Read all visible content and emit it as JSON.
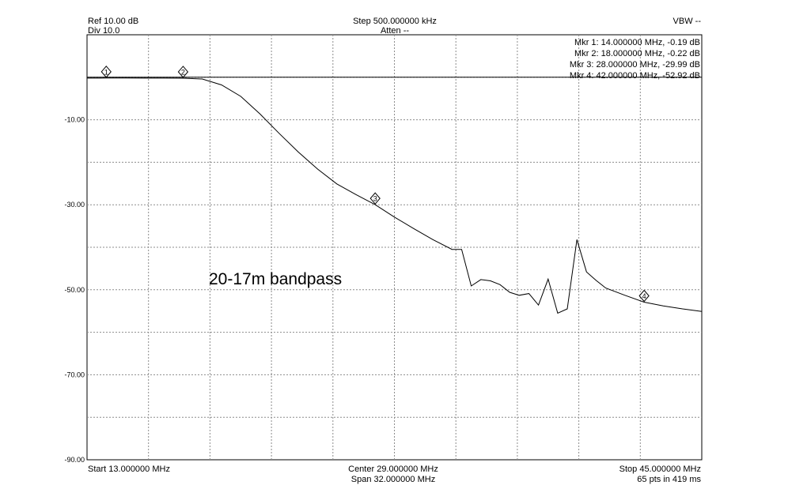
{
  "header": {
    "ref": "Ref 10.00 dB",
    "div": "Div 10.0",
    "step": "Step 500.000000 kHz",
    "atten": "Atten --",
    "vbw": "VBW --"
  },
  "markers_readout": [
    "Mkr 1: 14.000000 MHz, -0.19 dB",
    "Mkr 2: 18.000000 MHz, -0.22 dB",
    "Mkr 3: 28.000000 MHz, -29.99 dB",
    "Mkr 4: 42.000000 MHz, -52.92 dB"
  ],
  "footer": {
    "start": "Start 13.000000 MHz",
    "center": "Center 29.000000 MHz",
    "span": "Span 32.000000 MHz",
    "stop": "Stop 45.000000 MHz",
    "points": "65 pts in 419 ms"
  },
  "annotation": "20-17m bandpass",
  "colors": {
    "trace": "#000000",
    "grid": "#8c8c8c",
    "background": "#ffffff"
  },
  "chart_data": {
    "type": "line",
    "title": "",
    "xlabel": "",
    "ylabel": "",
    "xlim": [
      13,
      45
    ],
    "ylim": [
      -90,
      10
    ],
    "grid": true,
    "y_ticks": [
      {
        "value": -10,
        "label": "-10.00"
      },
      {
        "value": -30,
        "label": "-30.00"
      },
      {
        "value": -50,
        "label": "-50.00"
      },
      {
        "value": -70,
        "label": "-70.00"
      },
      {
        "value": -90,
        "label": "-90.00"
      }
    ],
    "reference_level": 0,
    "series": [
      {
        "x": [
          13,
          14,
          15,
          16,
          17,
          18,
          19,
          20,
          21,
          22,
          23,
          24,
          25,
          26,
          27,
          28,
          29,
          30,
          31,
          32,
          32.5,
          33,
          33.5,
          34,
          34.5,
          35,
          35.5,
          36,
          36.5,
          37,
          37.5,
          38,
          38.5,
          39,
          39.5,
          40,
          41,
          42,
          43,
          44,
          45
        ],
        "y": [
          -0.2,
          -0.19,
          -0.18,
          -0.2,
          -0.2,
          -0.22,
          -0.4,
          -1.8,
          -4.5,
          -8.6,
          -13.2,
          -17.6,
          -21.6,
          -25.1,
          -27.6,
          -29.99,
          -32.9,
          -35.6,
          -38.2,
          -40.5,
          -40.5,
          -49.1,
          -47.6,
          -47.9,
          -48.8,
          -50.6,
          -51.3,
          -50.9,
          -53.6,
          -47.5,
          -55.5,
          -54.5,
          -38.2,
          -45.8,
          -47.8,
          -49.6,
          -51.3,
          -52.92,
          -53.8,
          -54.5,
          -55.1
        ]
      }
    ],
    "markers": [
      {
        "label": "1",
        "x": 14,
        "y": -0.19
      },
      {
        "label": "2",
        "x": 18,
        "y": -0.22
      },
      {
        "label": "3",
        "x": 28,
        "y": -29.99
      },
      {
        "label": "4",
        "x": 42,
        "y": -52.92
      }
    ]
  }
}
